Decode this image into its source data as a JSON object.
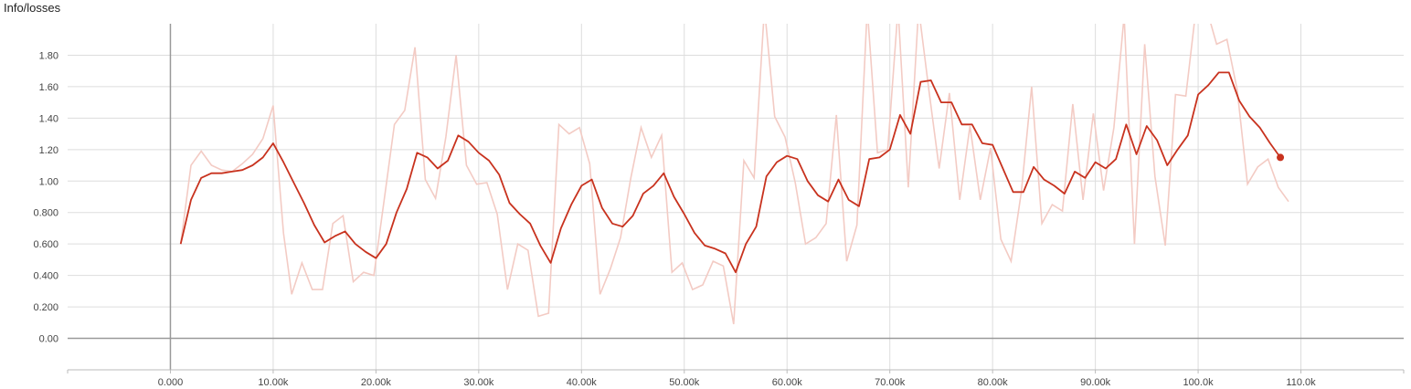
{
  "title": "Info/losses",
  "colors": {
    "smoothed": "#c8321e",
    "raw": "#f3cbc4",
    "grid": "#dddddd",
    "axis_zero": "#999999",
    "tick_text": "#444444"
  },
  "chart_data": {
    "type": "line",
    "title": "Info/losses",
    "xlabel": "",
    "ylabel": "",
    "xlim": [
      -10000,
      120000
    ],
    "ylim": [
      -0.2,
      2.0
    ],
    "grid": true,
    "x_ticks": [
      0,
      10000,
      20000,
      30000,
      40000,
      50000,
      60000,
      70000,
      80000,
      90000,
      100000,
      110000
    ],
    "x_tick_labels": [
      "0.000",
      "10.00k",
      "20.00k",
      "30.00k",
      "40.00k",
      "50.00k",
      "60.00k",
      "70.00k",
      "80.00k",
      "90.00k",
      "100.0k",
      "110.0k"
    ],
    "y_ticks": [
      0,
      0.2,
      0.4,
      0.6,
      0.8,
      1.0,
      1.2,
      1.4,
      1.6,
      1.8
    ],
    "y_tick_labels": [
      "0.00",
      "0.200",
      "0.400",
      "0.600",
      "0.800",
      "1.00",
      "1.20",
      "1.40",
      "1.60",
      "1.80"
    ],
    "series": [
      {
        "role": "raw",
        "points": [
          [
            1000,
            0.6
          ],
          [
            2000,
            1.1
          ],
          [
            3000,
            1.19
          ],
          [
            4000,
            1.1
          ],
          [
            5000,
            1.07
          ],
          [
            6000,
            1.06
          ],
          [
            7000,
            1.11
          ],
          [
            8000,
            1.17
          ],
          [
            9000,
            1.27
          ],
          [
            10000,
            1.48
          ],
          [
            11000,
            0.67
          ],
          [
            11800,
            0.28
          ],
          [
            12800,
            0.48
          ],
          [
            13800,
            0.31
          ],
          [
            14800,
            0.31
          ],
          [
            15800,
            0.73
          ],
          [
            16800,
            0.78
          ],
          [
            17800,
            0.36
          ],
          [
            18800,
            0.42
          ],
          [
            19800,
            0.4
          ],
          [
            20800,
            0.88
          ],
          [
            21800,
            1.36
          ],
          [
            22800,
            1.45
          ],
          [
            23800,
            1.85
          ],
          [
            24800,
            1.01
          ],
          [
            25800,
            0.89
          ],
          [
            26800,
            1.28
          ],
          [
            27800,
            1.8
          ],
          [
            28800,
            1.1
          ],
          [
            29800,
            0.98
          ],
          [
            30800,
            0.99
          ],
          [
            31800,
            0.79
          ],
          [
            32800,
            0.31
          ],
          [
            33800,
            0.6
          ],
          [
            34800,
            0.56
          ],
          [
            35800,
            0.14
          ],
          [
            36800,
            0.16
          ],
          [
            37800,
            1.36
          ],
          [
            38800,
            1.3
          ],
          [
            39800,
            1.34
          ],
          [
            40800,
            1.11
          ],
          [
            41800,
            0.28
          ],
          [
            42800,
            0.44
          ],
          [
            43800,
            0.64
          ],
          [
            44800,
            1.02
          ],
          [
            45800,
            1.34
          ],
          [
            46800,
            1.15
          ],
          [
            47800,
            1.29
          ],
          [
            48800,
            0.42
          ],
          [
            49800,
            0.48
          ],
          [
            50800,
            0.31
          ],
          [
            51800,
            0.34
          ],
          [
            52800,
            0.49
          ],
          [
            53800,
            0.46
          ],
          [
            54800,
            0.09
          ],
          [
            55800,
            1.13
          ],
          [
            56800,
            1.02
          ],
          [
            57800,
            2.1
          ],
          [
            58800,
            1.41
          ],
          [
            59800,
            1.28
          ],
          [
            60800,
            0.99
          ],
          [
            61800,
            0.6
          ],
          [
            62800,
            0.64
          ],
          [
            63800,
            0.73
          ],
          [
            64800,
            1.42
          ],
          [
            65800,
            0.49
          ],
          [
            66800,
            0.72
          ],
          [
            67800,
            2.1
          ],
          [
            68800,
            1.18
          ],
          [
            69800,
            1.2
          ],
          [
            70800,
            2.1
          ],
          [
            71800,
            0.96
          ],
          [
            72800,
            2.1
          ],
          [
            73800,
            1.58
          ],
          [
            74800,
            1.08
          ],
          [
            75800,
            1.56
          ],
          [
            76800,
            0.88
          ],
          [
            77800,
            1.35
          ],
          [
            78800,
            0.88
          ],
          [
            79800,
            1.21
          ],
          [
            80800,
            0.63
          ],
          [
            81800,
            0.49
          ],
          [
            82800,
            0.93
          ],
          [
            83800,
            1.6
          ],
          [
            84800,
            0.73
          ],
          [
            85800,
            0.85
          ],
          [
            86800,
            0.81
          ],
          [
            87800,
            1.49
          ],
          [
            88800,
            0.88
          ],
          [
            89800,
            1.43
          ],
          [
            90800,
            0.94
          ],
          [
            91800,
            1.34
          ],
          [
            92800,
            2.05
          ],
          [
            93800,
            0.6
          ],
          [
            94800,
            1.87
          ],
          [
            95800,
            1.03
          ],
          [
            96800,
            0.59
          ],
          [
            97800,
            1.55
          ],
          [
            98800,
            1.54
          ],
          [
            99800,
            2.1
          ],
          [
            100800,
            2.1
          ],
          [
            101800,
            1.87
          ],
          [
            102800,
            1.9
          ],
          [
            103800,
            1.58
          ],
          [
            104800,
            0.98
          ],
          [
            105800,
            1.09
          ],
          [
            106800,
            1.14
          ],
          [
            107800,
            0.96
          ],
          [
            108800,
            0.87
          ]
        ]
      },
      {
        "role": "smoothed",
        "points": [
          [
            1000,
            0.6
          ],
          [
            2000,
            0.88
          ],
          [
            3000,
            1.02
          ],
          [
            4000,
            1.05
          ],
          [
            5000,
            1.05
          ],
          [
            6000,
            1.06
          ],
          [
            7000,
            1.07
          ],
          [
            8000,
            1.1
          ],
          [
            9000,
            1.15
          ],
          [
            10000,
            1.24
          ],
          [
            11000,
            1.12
          ],
          [
            12000,
            0.99
          ],
          [
            13000,
            0.86
          ],
          [
            14000,
            0.72
          ],
          [
            15000,
            0.61
          ],
          [
            16000,
            0.65
          ],
          [
            17000,
            0.68
          ],
          [
            18000,
            0.6
          ],
          [
            19000,
            0.55
          ],
          [
            20000,
            0.51
          ],
          [
            21000,
            0.6
          ],
          [
            22000,
            0.8
          ],
          [
            23000,
            0.95
          ],
          [
            24000,
            1.18
          ],
          [
            25000,
            1.15
          ],
          [
            26000,
            1.08
          ],
          [
            27000,
            1.13
          ],
          [
            28000,
            1.29
          ],
          [
            29000,
            1.25
          ],
          [
            30000,
            1.18
          ],
          [
            31000,
            1.13
          ],
          [
            32000,
            1.04
          ],
          [
            33000,
            0.86
          ],
          [
            34000,
            0.79
          ],
          [
            35000,
            0.73
          ],
          [
            36000,
            0.59
          ],
          [
            37000,
            0.48
          ],
          [
            38000,
            0.7
          ],
          [
            39000,
            0.85
          ],
          [
            40000,
            0.97
          ],
          [
            41000,
            1.01
          ],
          [
            42000,
            0.83
          ],
          [
            43000,
            0.73
          ],
          [
            44000,
            0.71
          ],
          [
            45000,
            0.78
          ],
          [
            46000,
            0.92
          ],
          [
            47000,
            0.97
          ],
          [
            48000,
            1.05
          ],
          [
            49000,
            0.9
          ],
          [
            50000,
            0.79
          ],
          [
            51000,
            0.67
          ],
          [
            52000,
            0.59
          ],
          [
            53000,
            0.57
          ],
          [
            54000,
            0.54
          ],
          [
            55000,
            0.42
          ],
          [
            56000,
            0.6
          ],
          [
            57000,
            0.71
          ],
          [
            58000,
            1.03
          ],
          [
            59000,
            1.12
          ],
          [
            60000,
            1.16
          ],
          [
            61000,
            1.14
          ],
          [
            62000,
            1.0
          ],
          [
            63000,
            0.91
          ],
          [
            64000,
            0.87
          ],
          [
            65000,
            1.01
          ],
          [
            66000,
            0.88
          ],
          [
            67000,
            0.84
          ],
          [
            68000,
            1.14
          ],
          [
            69000,
            1.15
          ],
          [
            70000,
            1.2
          ],
          [
            71000,
            1.42
          ],
          [
            72000,
            1.3
          ],
          [
            73000,
            1.63
          ],
          [
            74000,
            1.64
          ],
          [
            75000,
            1.5
          ],
          [
            76000,
            1.5
          ],
          [
            77000,
            1.36
          ],
          [
            78000,
            1.36
          ],
          [
            79000,
            1.24
          ],
          [
            80000,
            1.23
          ],
          [
            81000,
            1.08
          ],
          [
            82000,
            0.93
          ],
          [
            83000,
            0.93
          ],
          [
            84000,
            1.09
          ],
          [
            85000,
            1.01
          ],
          [
            86000,
            0.97
          ],
          [
            87000,
            0.92
          ],
          [
            88000,
            1.06
          ],
          [
            89000,
            1.02
          ],
          [
            90000,
            1.12
          ],
          [
            91000,
            1.08
          ],
          [
            92000,
            1.14
          ],
          [
            93000,
            1.36
          ],
          [
            94000,
            1.17
          ],
          [
            95000,
            1.35
          ],
          [
            96000,
            1.26
          ],
          [
            97000,
            1.1
          ],
          [
            98000,
            1.2
          ],
          [
            99000,
            1.29
          ],
          [
            100000,
            1.55
          ],
          [
            101000,
            1.61
          ],
          [
            102000,
            1.69
          ],
          [
            103000,
            1.69
          ],
          [
            104000,
            1.51
          ],
          [
            105000,
            1.41
          ],
          [
            106000,
            1.34
          ],
          [
            107000,
            1.24
          ],
          [
            108000,
            1.15
          ]
        ]
      }
    ]
  }
}
